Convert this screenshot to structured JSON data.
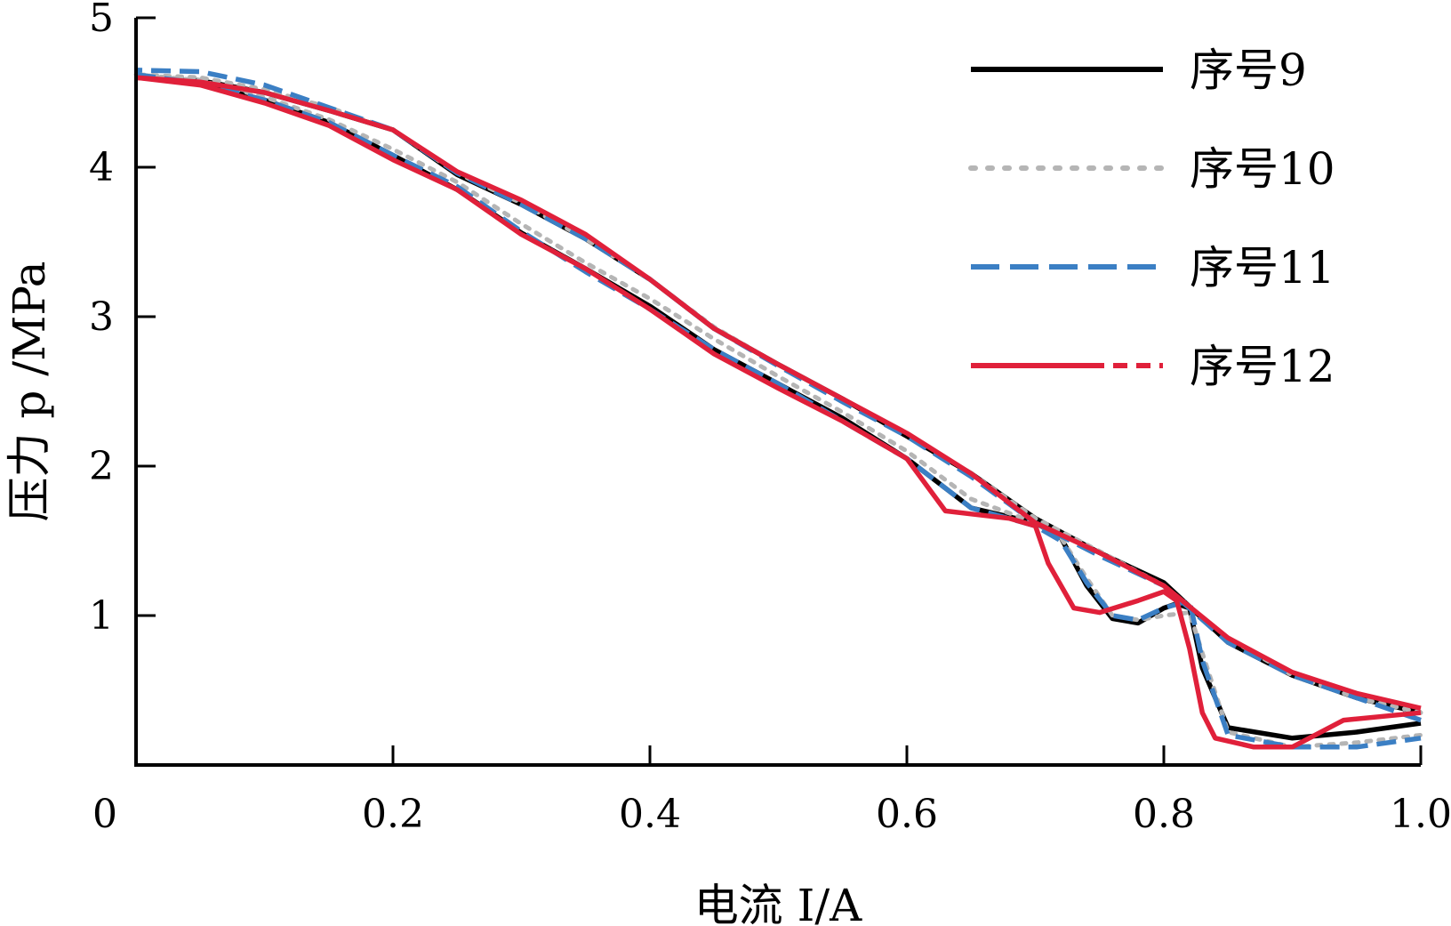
{
  "chart_data": {
    "type": "line",
    "xlabel": "电流 I/A",
    "ylabel": "压力 p /MPa",
    "xlim": [
      0,
      1.0
    ],
    "ylim": [
      0,
      5
    ],
    "x_ticks": [
      {
        "value": 0,
        "label": "0"
      },
      {
        "value": 0.2,
        "label": "0.2"
      },
      {
        "value": 0.4,
        "label": "0.4"
      },
      {
        "value": 0.6,
        "label": "0.6"
      },
      {
        "value": 0.8,
        "label": "0.8"
      },
      {
        "value": 1.0,
        "label": "1.0"
      }
    ],
    "y_ticks": [
      {
        "value": 1,
        "label": "1"
      },
      {
        "value": 2,
        "label": "2"
      },
      {
        "value": 3,
        "label": "3"
      },
      {
        "value": 4,
        "label": "4"
      },
      {
        "value": 5,
        "label": "5"
      }
    ],
    "grid": false,
    "legend_position": "top-right",
    "series": [
      {
        "name": "序号9",
        "color": "#000000",
        "style": "solid",
        "rising": [
          [
            0,
            4.62
          ],
          [
            0.05,
            4.56
          ],
          [
            0.1,
            4.45
          ],
          [
            0.15,
            4.3
          ],
          [
            0.2,
            4.08
          ],
          [
            0.25,
            3.85
          ],
          [
            0.3,
            3.56
          ],
          [
            0.35,
            3.32
          ],
          [
            0.4,
            3.07
          ],
          [
            0.45,
            2.78
          ],
          [
            0.5,
            2.55
          ],
          [
            0.55,
            2.32
          ],
          [
            0.6,
            2.05
          ],
          [
            0.65,
            1.72
          ],
          [
            0.7,
            1.62
          ],
          [
            0.72,
            1.52
          ],
          [
            0.74,
            1.2
          ],
          [
            0.76,
            0.98
          ],
          [
            0.78,
            0.95
          ],
          [
            0.8,
            1.05
          ],
          [
            0.81,
            1.08
          ],
          [
            0.82,
            1.05
          ],
          [
            0.83,
            0.65
          ],
          [
            0.85,
            0.25
          ],
          [
            0.9,
            0.18
          ],
          [
            0.95,
            0.22
          ],
          [
            1.0,
            0.28
          ]
        ],
        "falling": [
          [
            1.0,
            0.35
          ],
          [
            0.95,
            0.45
          ],
          [
            0.9,
            0.6
          ],
          [
            0.85,
            0.82
          ],
          [
            0.8,
            1.22
          ],
          [
            0.75,
            1.42
          ],
          [
            0.7,
            1.65
          ],
          [
            0.65,
            1.95
          ],
          [
            0.6,
            2.2
          ],
          [
            0.55,
            2.45
          ],
          [
            0.5,
            2.68
          ],
          [
            0.45,
            2.92
          ],
          [
            0.4,
            3.25
          ],
          [
            0.35,
            3.52
          ],
          [
            0.3,
            3.75
          ],
          [
            0.25,
            3.95
          ],
          [
            0.2,
            4.25
          ],
          [
            0.15,
            4.38
          ],
          [
            0.1,
            4.5
          ],
          [
            0.05,
            4.58
          ],
          [
            0,
            4.6
          ]
        ]
      },
      {
        "name": "序号10",
        "color": "#b5b5b5",
        "style": "dotted",
        "rising": [
          [
            0,
            4.62
          ],
          [
            0.05,
            4.58
          ],
          [
            0.1,
            4.47
          ],
          [
            0.15,
            4.32
          ],
          [
            0.2,
            4.12
          ],
          [
            0.25,
            3.9
          ],
          [
            0.3,
            3.62
          ],
          [
            0.35,
            3.36
          ],
          [
            0.4,
            3.12
          ],
          [
            0.45,
            2.85
          ],
          [
            0.5,
            2.6
          ],
          [
            0.55,
            2.36
          ],
          [
            0.6,
            2.1
          ],
          [
            0.65,
            1.78
          ],
          [
            0.7,
            1.62
          ],
          [
            0.72,
            1.52
          ],
          [
            0.74,
            1.25
          ],
          [
            0.76,
            1.0
          ],
          [
            0.78,
            0.97
          ],
          [
            0.8,
            1.0
          ],
          [
            0.82,
            1.02
          ],
          [
            0.83,
            0.75
          ],
          [
            0.85,
            0.22
          ],
          [
            0.9,
            0.12
          ],
          [
            0.95,
            0.15
          ],
          [
            1.0,
            0.2
          ]
        ],
        "falling": [
          [
            1.0,
            0.35
          ],
          [
            0.95,
            0.45
          ],
          [
            0.9,
            0.6
          ],
          [
            0.85,
            0.85
          ],
          [
            0.8,
            1.2
          ],
          [
            0.75,
            1.43
          ],
          [
            0.7,
            1.65
          ],
          [
            0.65,
            1.95
          ],
          [
            0.6,
            2.22
          ],
          [
            0.55,
            2.45
          ],
          [
            0.5,
            2.68
          ],
          [
            0.45,
            2.93
          ],
          [
            0.4,
            3.25
          ],
          [
            0.35,
            3.52
          ],
          [
            0.3,
            3.76
          ],
          [
            0.25,
            3.96
          ],
          [
            0.2,
            4.25
          ],
          [
            0.15,
            4.4
          ],
          [
            0.1,
            4.52
          ],
          [
            0.05,
            4.6
          ],
          [
            0,
            4.62
          ]
        ]
      },
      {
        "name": "序号11",
        "color": "#3b7fc4",
        "style": "dashed",
        "rising": [
          [
            0,
            4.62
          ],
          [
            0.05,
            4.56
          ],
          [
            0.1,
            4.45
          ],
          [
            0.15,
            4.3
          ],
          [
            0.2,
            4.08
          ],
          [
            0.25,
            3.87
          ],
          [
            0.3,
            3.57
          ],
          [
            0.35,
            3.3
          ],
          [
            0.4,
            3.05
          ],
          [
            0.45,
            2.78
          ],
          [
            0.5,
            2.55
          ],
          [
            0.55,
            2.3
          ],
          [
            0.6,
            2.05
          ],
          [
            0.65,
            1.72
          ],
          [
            0.7,
            1.6
          ],
          [
            0.72,
            1.5
          ],
          [
            0.74,
            1.22
          ],
          [
            0.76,
            1.0
          ],
          [
            0.78,
            0.97
          ],
          [
            0.8,
            1.05
          ],
          [
            0.82,
            1.1
          ],
          [
            0.83,
            0.7
          ],
          [
            0.85,
            0.2
          ],
          [
            0.9,
            0.12
          ],
          [
            0.95,
            0.12
          ],
          [
            1.0,
            0.18
          ]
        ],
        "falling": [
          [
            1.0,
            0.3
          ],
          [
            0.95,
            0.45
          ],
          [
            0.9,
            0.6
          ],
          [
            0.85,
            0.82
          ],
          [
            0.8,
            1.2
          ],
          [
            0.75,
            1.4
          ],
          [
            0.7,
            1.62
          ],
          [
            0.65,
            1.93
          ],
          [
            0.6,
            2.2
          ],
          [
            0.55,
            2.43
          ],
          [
            0.5,
            2.67
          ],
          [
            0.45,
            2.92
          ],
          [
            0.4,
            3.25
          ],
          [
            0.35,
            3.52
          ],
          [
            0.3,
            3.75
          ],
          [
            0.25,
            3.96
          ],
          [
            0.2,
            4.25
          ],
          [
            0.15,
            4.4
          ],
          [
            0.1,
            4.55
          ],
          [
            0.05,
            4.64
          ],
          [
            0,
            4.65
          ]
        ]
      },
      {
        "name": "序号12",
        "color": "#e0203a",
        "style": "solid-dash",
        "rising": [
          [
            0,
            4.6
          ],
          [
            0.05,
            4.55
          ],
          [
            0.1,
            4.43
          ],
          [
            0.15,
            4.28
          ],
          [
            0.2,
            4.05
          ],
          [
            0.25,
            3.85
          ],
          [
            0.3,
            3.55
          ],
          [
            0.35,
            3.32
          ],
          [
            0.4,
            3.05
          ],
          [
            0.45,
            2.75
          ],
          [
            0.5,
            2.52
          ],
          [
            0.55,
            2.3
          ],
          [
            0.6,
            2.05
          ],
          [
            0.63,
            1.7
          ],
          [
            0.65,
            1.68
          ],
          [
            0.68,
            1.65
          ],
          [
            0.7,
            1.6
          ],
          [
            0.71,
            1.35
          ],
          [
            0.73,
            1.05
          ],
          [
            0.75,
            1.02
          ],
          [
            0.78,
            1.1
          ],
          [
            0.8,
            1.16
          ],
          [
            0.81,
            1.1
          ],
          [
            0.82,
            0.78
          ],
          [
            0.83,
            0.35
          ],
          [
            0.84,
            0.18
          ],
          [
            0.87,
            0.12
          ],
          [
            0.9,
            0.12
          ],
          [
            0.94,
            0.3
          ],
          [
            1.0,
            0.35
          ]
        ],
        "falling": [
          [
            1.0,
            0.38
          ],
          [
            0.95,
            0.48
          ],
          [
            0.9,
            0.62
          ],
          [
            0.85,
            0.85
          ],
          [
            0.8,
            1.2
          ],
          [
            0.75,
            1.42
          ],
          [
            0.7,
            1.62
          ],
          [
            0.65,
            1.95
          ],
          [
            0.6,
            2.22
          ],
          [
            0.55,
            2.45
          ],
          [
            0.5,
            2.68
          ],
          [
            0.45,
            2.92
          ],
          [
            0.4,
            3.25
          ],
          [
            0.35,
            3.55
          ],
          [
            0.3,
            3.78
          ],
          [
            0.25,
            3.97
          ],
          [
            0.2,
            4.25
          ],
          [
            0.15,
            4.38
          ],
          [
            0.1,
            4.5
          ],
          [
            0.05,
            4.57
          ],
          [
            0,
            4.6
          ]
        ]
      }
    ]
  }
}
